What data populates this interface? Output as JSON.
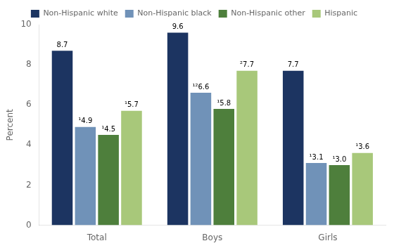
{
  "chart_data": {
    "type": "bar",
    "categories": [
      "Total",
      "Boys",
      "Girls"
    ],
    "series": [
      {
        "name": "Non-Hispanic white",
        "color": "#1c3461",
        "values": [
          8.7,
          9.6,
          7.7
        ],
        "value_labels": [
          "8.7",
          "9.6",
          "7.7"
        ]
      },
      {
        "name": "Non-Hispanic black",
        "color": "#7092b8",
        "values": [
          4.9,
          6.6,
          3.1
        ],
        "value_labels": [
          "¹4.9",
          "¹²6.6",
          "¹3.1"
        ]
      },
      {
        "name": "Non-Hispanic other",
        "color": "#4e7f3c",
        "values": [
          4.5,
          5.8,
          3.0
        ],
        "value_labels": [
          "¹4.5",
          "¹5.8",
          "¹3.0"
        ]
      },
      {
        "name": "Hispanic",
        "color": "#a8c87a",
        "values": [
          5.7,
          7.7,
          3.6
        ],
        "value_labels": [
          "¹5.7",
          "²7.7",
          "¹3.6"
        ]
      }
    ],
    "ylabel": "Percent",
    "ylim": [
      0,
      10
    ],
    "yticks": [
      0,
      2,
      4,
      6,
      8,
      10
    ],
    "grid": false,
    "legend": "top",
    "data_labels": true
  }
}
